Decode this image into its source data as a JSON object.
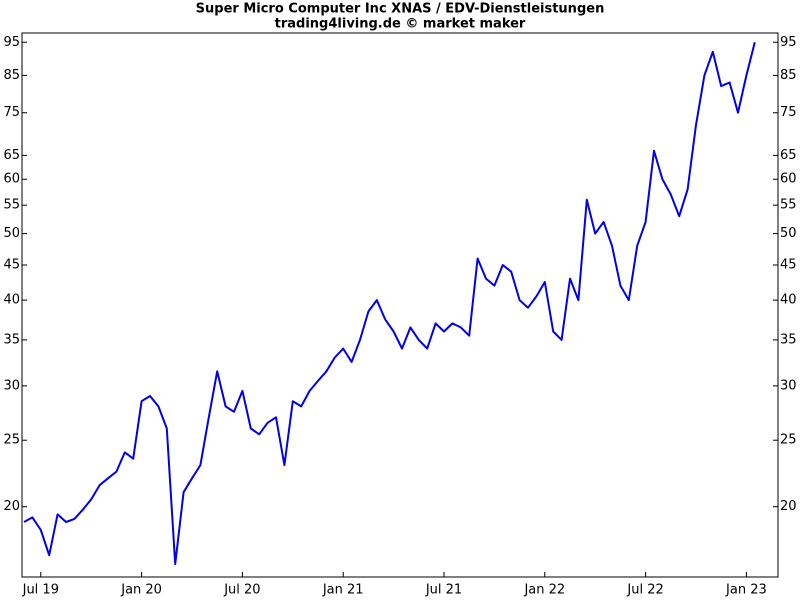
{
  "chart_data": {
    "type": "line",
    "title": "Super Micro Computer Inc XNAS / EDV-Dienstleistungen",
    "subtitle": "trading4living.de © market maker",
    "categories": [
      null,
      null,
      "Jul 19",
      null,
      null,
      null,
      null,
      null,
      null,
      null,
      null,
      null,
      null,
      null,
      "Jan 20",
      null,
      null,
      null,
      null,
      null,
      null,
      null,
      null,
      null,
      null,
      null,
      "Jul 20",
      null,
      null,
      null,
      null,
      null,
      null,
      null,
      null,
      null,
      null,
      null,
      "Jan 21",
      null,
      null,
      null,
      null,
      null,
      null,
      null,
      null,
      null,
      null,
      null,
      "Jul 21",
      null,
      null,
      null,
      null,
      null,
      null,
      null,
      null,
      null,
      null,
      null,
      "Jan 22",
      null,
      null,
      null,
      null,
      null,
      null,
      null,
      null,
      null,
      null,
      null,
      "Jul 22",
      null,
      null,
      null,
      null,
      null,
      null,
      null,
      null,
      null,
      null,
      null,
      "Jan 23",
      null
    ],
    "values": [
      19.0,
      19.3,
      18.5,
      17.0,
      19.5,
      19.0,
      19.2,
      19.8,
      20.5,
      21.5,
      22.0,
      22.5,
      24.0,
      23.5,
      28.5,
      29.0,
      28.0,
      26.0,
      16.5,
      21.0,
      22.0,
      23.0,
      27.0,
      31.5,
      28.0,
      27.5,
      29.5,
      26.0,
      25.5,
      26.5,
      27.0,
      23.0,
      28.5,
      28.0,
      29.5,
      30.5,
      31.5,
      33.0,
      34.0,
      32.5,
      35.0,
      38.5,
      40.0,
      37.5,
      36.0,
      34.0,
      36.5,
      35.0,
      34.0,
      37.0,
      36.0,
      37.0,
      36.5,
      35.5,
      46.0,
      43.0,
      42.0,
      45.0,
      44.0,
      40.0,
      39.0,
      40.5,
      42.5,
      36.0,
      35.0,
      43.0,
      40.0,
      56.0,
      50.0,
      52.0,
      48.0,
      42.0,
      40.0,
      48.0,
      52.0,
      66.0,
      60.0,
      57.0,
      53.0,
      58.0,
      72.0,
      85.0,
      92.0,
      82.0,
      83.0,
      75.0,
      85.0,
      95.0
    ],
    "color": "#0000ee",
    "yscale": "log",
    "ylim": [
      15.8,
      98
    ],
    "yticks": [
      20,
      25,
      30,
      35,
      40,
      45,
      50,
      55,
      60,
      65,
      75,
      85,
      95
    ]
  }
}
